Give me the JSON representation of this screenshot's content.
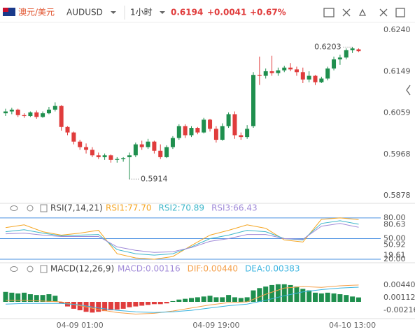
{
  "header": {
    "symbol": "澳元/美元",
    "code": "AUDUSD",
    "interval": "1小时",
    "price": "0.6194",
    "change": "+0.0041",
    "change_pct": "+0.67%"
  },
  "chart_data": [
    {
      "type": "candlestick",
      "categories": [
        null,
        null,
        null,
        null,
        null,
        null,
        null,
        null,
        null,
        null,
        null,
        null,
        "04-09 01:00",
        null,
        null,
        null,
        null,
        null,
        null,
        null,
        null,
        null,
        null,
        null,
        null,
        null,
        null,
        null,
        null,
        null,
        null,
        null,
        null,
        null,
        "04-09 19:00",
        null,
        null,
        null,
        null,
        null,
        null,
        null,
        null,
        null,
        null,
        null,
        null,
        null,
        null,
        null,
        null,
        null,
        null,
        null,
        null,
        null,
        "04-10 13:00",
        null
      ],
      "open": [
        0.6058,
        0.6062,
        0.6066,
        0.6054,
        0.6052,
        0.606,
        0.605,
        0.6058,
        0.6066,
        0.6074,
        0.6028,
        0.6016,
        0.5996,
        0.5984,
        0.5978,
        0.5966,
        0.5962,
        0.5966,
        0.5956,
        0.5958,
        0.5962,
        0.5966,
        0.599,
        0.5984,
        0.5996,
        0.5976,
        0.5962,
        0.5984,
        0.6004,
        0.603,
        0.601,
        0.6026,
        0.6016,
        0.6044,
        0.6024,
        0.6,
        0.603,
        0.6056,
        0.601,
        0.6006,
        0.603,
        0.6142,
        0.614,
        0.615,
        0.6146,
        0.6152,
        0.6158,
        0.6154,
        0.6148,
        0.6132,
        0.614,
        0.6126,
        0.6134,
        0.6156,
        0.6176,
        0.618,
        0.6196,
        0.6198
      ],
      "high": [
        0.6068,
        0.607,
        0.6068,
        0.6058,
        0.6062,
        0.6064,
        0.6062,
        0.6072,
        0.6082,
        0.6076,
        0.603,
        0.6018,
        0.6,
        0.5992,
        0.5984,
        0.5972,
        0.597,
        0.5968,
        0.5962,
        0.5962,
        0.5972,
        0.5994,
        0.5998,
        0.6002,
        0.5998,
        0.599,
        0.5988,
        0.6008,
        0.6034,
        0.6034,
        0.603,
        0.6028,
        0.6048,
        0.6046,
        0.603,
        0.6036,
        0.606,
        0.6062,
        0.6016,
        0.6032,
        0.6148,
        0.6182,
        0.6156,
        0.6184,
        0.6158,
        0.6162,
        0.6168,
        0.616,
        0.6158,
        0.615,
        0.6142,
        0.6138,
        0.616,
        0.6182,
        0.6186,
        0.62,
        0.6203,
        0.62
      ],
      "low": [
        0.6052,
        0.6056,
        0.605,
        0.6048,
        0.605,
        0.6046,
        0.6048,
        0.6056,
        0.6062,
        0.602,
        0.601,
        0.599,
        0.5978,
        0.597,
        0.5962,
        0.5958,
        0.5956,
        0.595,
        0.595,
        0.5952,
        0.5914,
        0.5962,
        0.5978,
        0.598,
        0.597,
        0.5958,
        0.596,
        0.598,
        0.6,
        0.6004,
        0.6006,
        0.6012,
        0.6014,
        0.6018,
        0.5994,
        0.5998,
        0.6026,
        0.6002,
        0.6,
        0.6002,
        0.6026,
        0.612,
        0.6134,
        0.614,
        0.614,
        0.6148,
        0.615,
        0.614,
        0.6124,
        0.6126,
        0.612,
        0.6124,
        0.613,
        0.6152,
        0.6164,
        0.6176,
        0.619,
        0.6192
      ],
      "close": [
        0.6062,
        0.6066,
        0.6054,
        0.6052,
        0.606,
        0.605,
        0.6058,
        0.6066,
        0.6074,
        0.6028,
        0.6016,
        0.5996,
        0.5984,
        0.5978,
        0.5966,
        0.5962,
        0.5966,
        0.5956,
        0.5958,
        0.596,
        0.5966,
        0.599,
        0.5984,
        0.5996,
        0.5976,
        0.5962,
        0.5984,
        0.6004,
        0.603,
        0.601,
        0.6026,
        0.6016,
        0.6044,
        0.6024,
        0.6,
        0.603,
        0.6056,
        0.601,
        0.6006,
        0.6024,
        0.6142,
        0.614,
        0.615,
        0.6146,
        0.6152,
        0.6158,
        0.6154,
        0.6148,
        0.6132,
        0.614,
        0.6126,
        0.6134,
        0.6156,
        0.6176,
        0.618,
        0.6196,
        0.62,
        0.6194
      ],
      "up_color": "#1f8f4e",
      "down_color": "#e03c3c",
      "ylim": [
        0.5864,
        0.6257
      ],
      "yticks": [
        {
          "value": 0.624,
          "label": "0.6240"
        },
        0.6149,
        0.6059,
        0.5968,
        0.5878
      ],
      "annotations": [
        {
          "label": "0.6203",
          "value": 0.6203
        },
        {
          "label": "0.5914",
          "value": 0.5914
        }
      ]
    },
    {
      "type": "line",
      "title": "RSI(7,14,21)",
      "series": [
        {
          "name": "RSI1:77.70",
          "color": "#f5a623",
          "values": [
            66,
            70,
            60,
            55,
            58,
            62,
            28,
            22,
            20,
            24,
            40,
            55,
            62,
            70,
            65,
            48,
            45,
            78,
            80,
            77.7
          ]
        },
        {
          "name": "RSI2:70.89",
          "color": "#3cb6c9",
          "values": [
            60,
            63,
            58,
            54,
            55,
            56,
            34,
            28,
            26,
            28,
            38,
            50,
            55,
            62,
            60,
            50,
            48,
            72,
            76,
            70.89
          ]
        },
        {
          "name": "RSI3:66.43",
          "color": "#a08ad8",
          "values": [
            57,
            58,
            55,
            53,
            53,
            53,
            38,
            33,
            30,
            31,
            37,
            46,
            50,
            56,
            56,
            50,
            49,
            68,
            72,
            66.43
          ]
        }
      ],
      "ylim": [
        18,
        86
      ],
      "yticks": [
        {
          "value": 80,
          "label": "80.00"
        },
        {
          "value": 50,
          "label": "50.00"
        },
        {
          "value": 20,
          "label": "20.00"
        }
      ],
      "level_color": "#4a90e2",
      "markers": [
        80.63,
        50.92,
        19.61
      ]
    },
    {
      "type": "macd",
      "title": "MACD(12,26,9)",
      "bars": {
        "name": "MACD:0.00116",
        "color": "#a08ad8",
        "up_color": "#1f8f4e",
        "down_color": "#e03c3c",
        "values": [
          0.0026,
          0.0024,
          0.0022,
          0.0024,
          0.002,
          0.0018,
          0.0018,
          0.002,
          0.0016,
          -0.0004,
          -0.0012,
          -0.0018,
          -0.0022,
          -0.0026,
          -0.0028,
          -0.0026,
          -0.0024,
          -0.0022,
          -0.002,
          -0.0018,
          -0.0014,
          -0.0012,
          -0.001,
          -0.0008,
          -0.0006,
          -0.0006,
          -0.0004,
          0.0002,
          0.0006,
          0.0008,
          0.001,
          0.0012,
          0.0014,
          0.0016,
          0.0012,
          0.0012,
          0.0018,
          0.0012,
          0.001,
          0.0012,
          0.003,
          0.0036,
          0.004,
          0.0044,
          0.0046,
          0.0046,
          0.0044,
          0.004,
          0.0034,
          0.003,
          0.0024,
          0.0022,
          0.0024,
          0.0022,
          0.002,
          0.0018,
          0.0014,
          0.00116
        ]
      },
      "series": [
        {
          "name": "DIF:0.00440",
          "color": "#f5a04a",
          "values": [
            0.0004,
            0.0004,
            0.0002,
            0,
            -0.001,
            -0.002,
            -0.0028,
            -0.0032,
            -0.003,
            -0.0024,
            -0.0016,
            -0.0008,
            -0.0002,
            0,
            0.002,
            0.0036,
            0.004,
            0.0038,
            0.0042,
            0.0044
          ]
        },
        {
          "name": "DEA:0.00383",
          "color": "#3bb4e0",
          "values": [
            -0.0006,
            -0.0004,
            -0.0004,
            -0.0004,
            -0.0008,
            -0.0016,
            -0.0022,
            -0.0026,
            -0.0028,
            -0.0026,
            -0.0022,
            -0.0016,
            -0.001,
            -0.0006,
            0.0004,
            0.0016,
            0.0026,
            0.0032,
            0.0036,
            0.00383
          ]
        }
      ],
      "ylim": [
        -0.0042,
        0.0095
      ],
      "yticks": [
        {
          "value": 0.0044,
          "label": "0.00440"
        },
        0.00112,
        -0.00216
      ]
    }
  ]
}
